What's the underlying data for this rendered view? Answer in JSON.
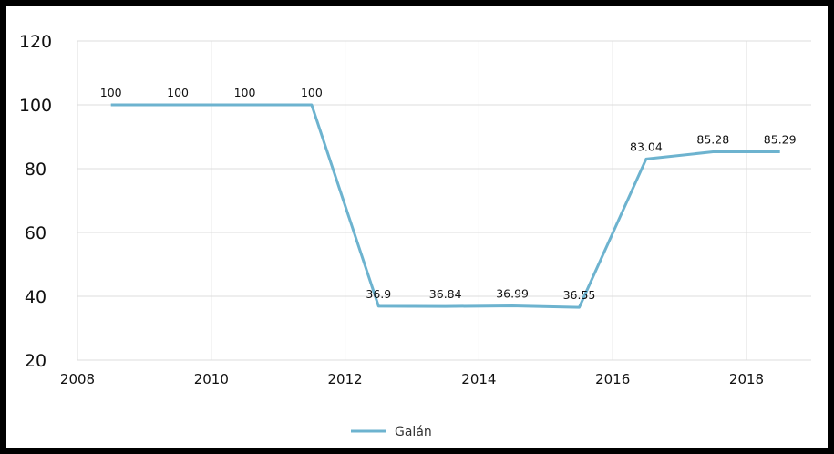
{
  "chart_data": {
    "type": "line",
    "title": "",
    "xlabel": "",
    "ylabel": "",
    "xlim": [
      2008,
      2019
    ],
    "ylim": [
      20,
      120
    ],
    "x_ticks": [
      "2008",
      "2010",
      "2012",
      "2014",
      "2016",
      "2018"
    ],
    "y_ticks": [
      "20",
      "40",
      "60",
      "80",
      "100",
      "120"
    ],
    "grid": true,
    "legend_position": "bottom",
    "series": [
      {
        "name": "Galán",
        "color": "#6db3cf",
        "x": [
          2008.5,
          2009.5,
          2010.5,
          2011.5,
          2012.5,
          2013.5,
          2014.5,
          2015.5,
          2016.5,
          2017.5,
          2018.5
        ],
        "values": [
          100,
          100,
          100,
          100,
          36.9,
          36.84,
          36.99,
          36.55,
          83.04,
          85.28,
          85.29
        ],
        "labels": [
          "100",
          "100",
          "100",
          "100",
          "36.9",
          "36.84",
          "36.99",
          "36.55",
          "83.04",
          "85.28",
          "85.29"
        ]
      }
    ]
  }
}
